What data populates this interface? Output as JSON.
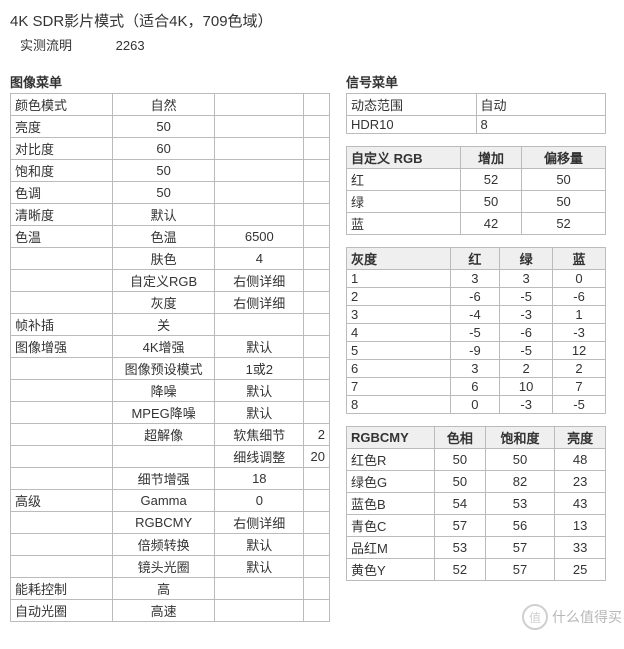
{
  "header": {
    "title": "4K SDR影片模式（适合4K，709色域）",
    "lumens_label": "实测流明",
    "lumens_value": "2263"
  },
  "image_menu": {
    "title": "图像菜单",
    "rows": [
      {
        "k": "颜色模式",
        "v1": "自然",
        "v2": "",
        "v3": ""
      },
      {
        "k": "亮度",
        "v1": "50",
        "v2": "",
        "v3": ""
      },
      {
        "k": "对比度",
        "v1": "60",
        "v2": "",
        "v3": ""
      },
      {
        "k": "饱和度",
        "v1": "50",
        "v2": "",
        "v3": ""
      },
      {
        "k": "色调",
        "v1": "50",
        "v2": "",
        "v3": ""
      },
      {
        "k": "清晰度",
        "v1": "默认",
        "v2": "",
        "v3": ""
      },
      {
        "k": "色温",
        "v1": "色温",
        "v2": "6500",
        "v3": ""
      },
      {
        "k": "",
        "v1": "肤色",
        "v2": "4",
        "v3": ""
      },
      {
        "k": "",
        "v1": "自定义RGB",
        "v2": "右侧详细",
        "v3": ""
      },
      {
        "k": "",
        "v1": "灰度",
        "v2": "右侧详细",
        "v3": ""
      },
      {
        "k": "帧补插",
        "v1": "关",
        "v2": "",
        "v3": ""
      },
      {
        "k": "图像增强",
        "v1": "4K增强",
        "v2": "默认",
        "v3": ""
      },
      {
        "k": "",
        "v1": "图像预设模式",
        "v2": "1或2",
        "v3": ""
      },
      {
        "k": "",
        "v1": "降噪",
        "v2": "默认",
        "v3": ""
      },
      {
        "k": "",
        "v1": "MPEG降噪",
        "v2": "默认",
        "v3": ""
      },
      {
        "k": "",
        "v1": "超解像",
        "v2": "软焦细节",
        "v3": "2"
      },
      {
        "k": "",
        "v1": "",
        "v2": "细线调整",
        "v3": "20"
      },
      {
        "k": "",
        "v1": "细节增强",
        "v2": "18",
        "v3": ""
      },
      {
        "k": "高级",
        "v1": "Gamma",
        "v2": "0",
        "v3": ""
      },
      {
        "k": "",
        "v1": "RGBCMY",
        "v2": "右侧详细",
        "v3": ""
      },
      {
        "k": "",
        "v1": "倍频转换",
        "v2": "默认",
        "v3": ""
      },
      {
        "k": "",
        "v1": "镜头光圈",
        "v2": "默认",
        "v3": ""
      },
      {
        "k": "能耗控制",
        "v1": "高",
        "v2": "",
        "v3": ""
      },
      {
        "k": "自动光圈",
        "v1": "高速",
        "v2": "",
        "v3": ""
      }
    ]
  },
  "signal_menu": {
    "title": "信号菜单",
    "rows": [
      {
        "k": "动态范围",
        "v": "自动"
      },
      {
        "k": "HDR10",
        "v": "8"
      }
    ]
  },
  "custom_rgb": {
    "headers": [
      "自定义 RGB",
      "增加",
      "偏移量"
    ],
    "rows": [
      {
        "name": "红",
        "inc": "52",
        "off": "50"
      },
      {
        "name": "绿",
        "inc": "50",
        "off": "50"
      },
      {
        "name": "蓝",
        "inc": "42",
        "off": "52"
      }
    ]
  },
  "gray": {
    "headers": [
      "灰度",
      "红",
      "绿",
      "蓝"
    ],
    "rows": [
      {
        "n": "1",
        "r": "3",
        "g": "3",
        "b": "0"
      },
      {
        "n": "2",
        "r": "-6",
        "g": "-5",
        "b": "-6"
      },
      {
        "n": "3",
        "r": "-4",
        "g": "-3",
        "b": "1"
      },
      {
        "n": "4",
        "r": "-5",
        "g": "-6",
        "b": "-3"
      },
      {
        "n": "5",
        "r": "-9",
        "g": "-5",
        "b": "12"
      },
      {
        "n": "6",
        "r": "3",
        "g": "2",
        "b": "2"
      },
      {
        "n": "7",
        "r": "6",
        "g": "10",
        "b": "7"
      },
      {
        "n": "8",
        "r": "0",
        "g": "-3",
        "b": "-5"
      }
    ]
  },
  "rgbcmy": {
    "headers": [
      "RGBCMY",
      "色相",
      "饱和度",
      "亮度"
    ],
    "rows": [
      {
        "name": "红色R",
        "h": "50",
        "s": "50",
        "l": "48"
      },
      {
        "name": "绿色G",
        "h": "50",
        "s": "82",
        "l": "23"
      },
      {
        "name": "蓝色B",
        "h": "54",
        "s": "53",
        "l": "43"
      },
      {
        "name": "青色C",
        "h": "57",
        "s": "56",
        "l": "13"
      },
      {
        "name": "品红M",
        "h": "53",
        "s": "57",
        "l": "33"
      },
      {
        "name": "黄色Y",
        "h": "52",
        "s": "57",
        "l": "25"
      }
    ]
  },
  "watermark": {
    "icon": "值",
    "text": "什么值得买"
  }
}
